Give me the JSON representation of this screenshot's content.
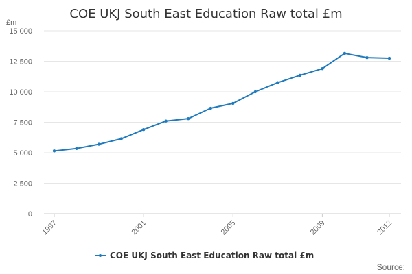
{
  "chart_data": {
    "type": "line",
    "title": "COE UKJ South East Education Raw total £m",
    "unit_label": "£m",
    "x": [
      1997,
      1998,
      1999,
      2000,
      2001,
      2002,
      2003,
      2004,
      2005,
      2006,
      2007,
      2008,
      2009,
      2010,
      2011,
      2012
    ],
    "x_tick_labels": [
      "1997",
      "2001",
      "2005",
      "2009",
      "2012"
    ],
    "y_tick_labels": [
      "0",
      "2 500",
      "5 000",
      "7 500",
      "10 000",
      "12 500",
      "15 000"
    ],
    "ylim": [
      0,
      15000
    ],
    "grid": true,
    "legend_position": "bottom",
    "series": [
      {
        "name": "COE UKJ South East Education Raw total £m",
        "color": "#1f7bbd",
        "values": [
          5150,
          5350,
          5700,
          6150,
          6900,
          7600,
          7800,
          8650,
          9050,
          10000,
          10750,
          11350,
          11900,
          13150,
          12800,
          12750
        ]
      }
    ]
  },
  "source_label": "Source:"
}
